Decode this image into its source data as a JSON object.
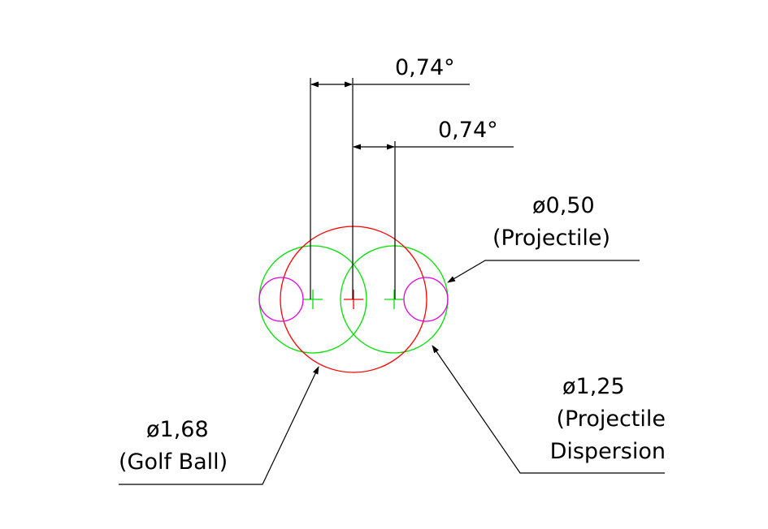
{
  "colors": {
    "golf_ball": "#ff0000",
    "dispersion": "#00e000",
    "projectile": "#e000e0",
    "dimension": "#000000"
  },
  "dimensions": {
    "top": {
      "text": "0,74°"
    },
    "middle": {
      "text": "0,74°"
    }
  },
  "callouts": {
    "projectile": {
      "line1": "ø0,50",
      "line2": "(Projectile)"
    },
    "dispersion": {
      "line1": "ø1,25",
      "line2": "(Projectile",
      "line3": "Dispersion"
    },
    "golf_ball": {
      "line1": "ø1,68",
      "line2": "(Golf Ball)"
    }
  }
}
